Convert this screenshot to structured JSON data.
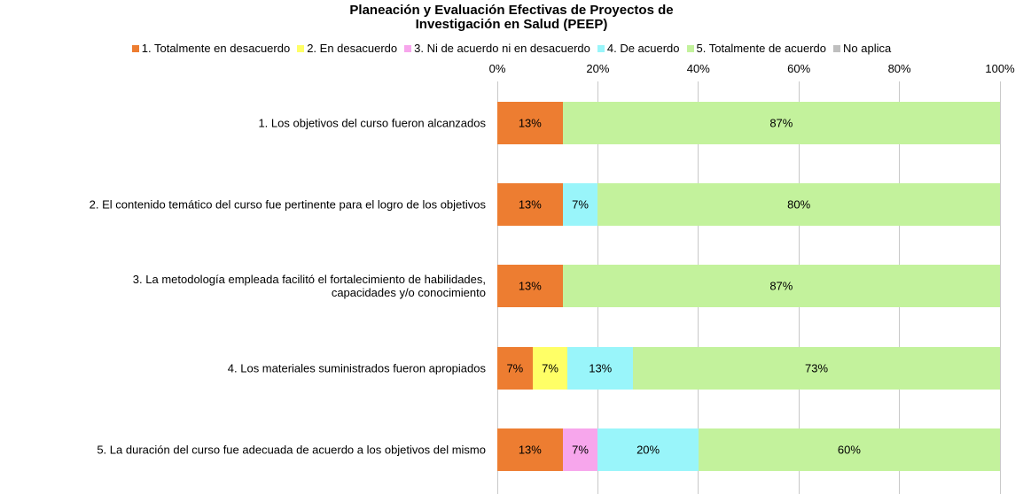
{
  "chart_data": {
    "type": "bar",
    "orientation": "horizontal",
    "stacked": true,
    "title": "Planeación y Evaluación Efectivas de Proyectos de\nInvestigación en Salud (PEEP)",
    "categories": [
      "1. Los objetivos del curso fueron alcanzados",
      "2. El contenido temático del curso fue pertinente para el logro de los objetivos",
      "3. La metodología empleada facilitó el fortalecimiento de habilidades,\ncapacidades y/o conocimiento",
      "4. Los materiales suministrados fueron apropiados",
      "5. La duración del curso fue adecuada de acuerdo a los objetivos del mismo"
    ],
    "series": [
      {
        "name": "1. Totalmente en desacuerdo",
        "color": "#ed7d31",
        "values": [
          13,
          13,
          13,
          7,
          13
        ],
        "value_labels": [
          "13%",
          "13%",
          "13%",
          "7%",
          "13%"
        ]
      },
      {
        "name": "2. En desacuerdo",
        "color": "#ffff66",
        "values": [
          null,
          null,
          null,
          7,
          null
        ],
        "value_labels": [
          null,
          null,
          null,
          "7%",
          null
        ]
      },
      {
        "name": "3. Ni de acuerdo ni en desacuerdo",
        "color": "#f7a6ec",
        "values": [
          null,
          null,
          null,
          null,
          7
        ],
        "value_labels": [
          null,
          null,
          null,
          null,
          "7%"
        ]
      },
      {
        "name": "4. De acuerdo",
        "color": "#99f5fa",
        "values": [
          null,
          7,
          null,
          13,
          20
        ],
        "value_labels": [
          null,
          "7%",
          null,
          "13%",
          "20%"
        ]
      },
      {
        "name": "5. Totalmente de acuerdo",
        "color": "#c3f29c",
        "values": [
          87,
          80,
          87,
          73,
          60
        ],
        "value_labels": [
          "87%",
          "80%",
          "87%",
          "73%",
          "60%"
        ]
      },
      {
        "name": "No aplica",
        "color": "#bfbfbf",
        "values": [
          null,
          null,
          null,
          null,
          null
        ],
        "value_labels": [
          null,
          null,
          null,
          null,
          null
        ]
      }
    ],
    "xlim": [
      0,
      100
    ],
    "xticks": [
      {
        "value": 0,
        "label": "0%"
      },
      {
        "value": 20,
        "label": "20%"
      },
      {
        "value": 40,
        "label": "40%"
      },
      {
        "value": 60,
        "label": "60%"
      },
      {
        "value": 80,
        "label": "80%"
      },
      {
        "value": 100,
        "label": "100%"
      }
    ],
    "grid": true
  }
}
